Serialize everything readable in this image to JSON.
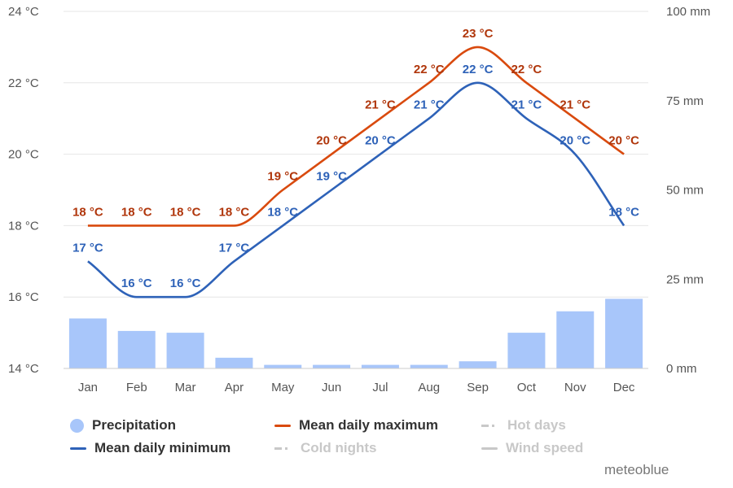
{
  "chart_data": {
    "type": "bar+line",
    "categories": [
      "Jan",
      "Feb",
      "Mar",
      "Apr",
      "May",
      "Jun",
      "Jul",
      "Aug",
      "Sep",
      "Oct",
      "Nov",
      "Dec"
    ],
    "series": [
      {
        "name": "Precipitation",
        "type": "bar",
        "axis": "right",
        "color": "#a8c6fa",
        "values": [
          14,
          10.5,
          10,
          3,
          1,
          1,
          1,
          1,
          2,
          10,
          16,
          19.5
        ]
      },
      {
        "name": "Mean daily maximum",
        "type": "line",
        "axis": "left",
        "color": "#d94a0e",
        "label_color": "#b0360b",
        "values": [
          18,
          18,
          18,
          18,
          19,
          20,
          21,
          22,
          23,
          22,
          21,
          20
        ],
        "labels": [
          "18 °C",
          "18 °C",
          "18 °C",
          "18 °C",
          "19 °C",
          "20 °C",
          "21 °C",
          "22 °C",
          "23 °C",
          "22 °C",
          "21 °C",
          "20 °C"
        ]
      },
      {
        "name": "Mean daily minimum",
        "type": "line",
        "axis": "left",
        "color": "#2e62b8",
        "label_color": "#2e62b8",
        "values": [
          17,
          16,
          16,
          17,
          18,
          19,
          20,
          21,
          22,
          21,
          20,
          18
        ],
        "labels": [
          "17 °C",
          "16 °C",
          "16 °C",
          "17 °C",
          "18 °C",
          "19 °C",
          "20 °C",
          "21 °C",
          "22 °C",
          "21 °C",
          "20 °C",
          "18 °C"
        ]
      }
    ],
    "y_left": {
      "ylim": [
        14,
        24
      ],
      "ticks": [
        "14 °C",
        "16 °C",
        "18 °C",
        "20 °C",
        "22 °C",
        "24 °C"
      ],
      "tick_values": [
        14,
        16,
        18,
        20,
        22,
        24
      ]
    },
    "y_right": {
      "ylim": [
        0,
        100
      ],
      "ticks": [
        "0 mm",
        "25 mm",
        "50 mm",
        "75 mm",
        "100 mm"
      ],
      "tick_values": [
        0,
        25,
        50,
        75,
        100
      ]
    },
    "grid": true,
    "legend_position": "bottom"
  },
  "legend": {
    "precipitation": "Precipitation",
    "mean_daily_maximum": "Mean daily maximum",
    "hot_days": "Hot days",
    "mean_daily_minimum": "Mean daily minimum",
    "cold_nights": "Cold nights",
    "wind_speed": "Wind speed"
  },
  "credit": "meteoblue"
}
